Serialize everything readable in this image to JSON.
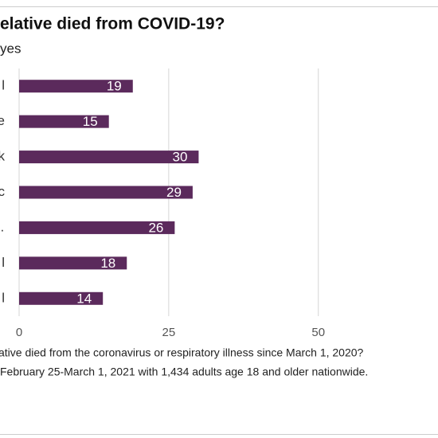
{
  "chart_data": {
    "type": "bar",
    "orientation": "horizontal",
    "title": "elative died from COVID-19?",
    "subtitle": "yes",
    "categories": [
      "l",
      "e",
      "k",
      "c",
      "l…",
      "l",
      "l"
    ],
    "values": [
      19,
      15,
      30,
      29,
      26,
      18,
      14
    ],
    "color": "#5b2a5c",
    "xlim": [
      0,
      70
    ],
    "xticks": [
      0,
      25,
      50
    ],
    "grid": true,
    "notes": [
      "ative died from the coronavirus or respiratory illness since March 1, 2020?",
      "February 25-March 1, 2021 with 1,434 adults age 18 and older nationwide."
    ]
  }
}
